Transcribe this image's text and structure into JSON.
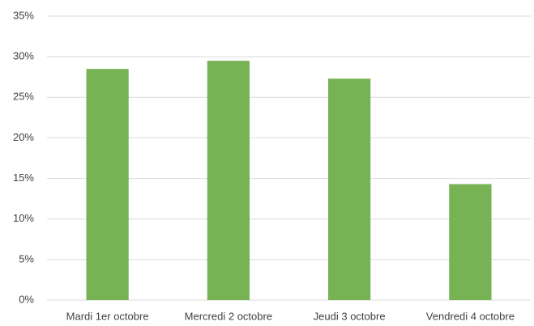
{
  "chart_data": {
    "type": "bar",
    "categories": [
      "Mardi 1er octobre",
      "Mercredi 2 octobre",
      "Jeudi 3 octobre",
      "Vendredi 4 octobre"
    ],
    "values": [
      28.5,
      29.5,
      27.3,
      14.3
    ],
    "color": "#77b254",
    "ylim": [
      0,
      35
    ],
    "yticks": [
      {
        "value": 0,
        "label": "0%"
      },
      {
        "value": 5,
        "label": "5%"
      },
      {
        "value": 10,
        "label": "10%"
      },
      {
        "value": 15,
        "label": "15%"
      },
      {
        "value": 20,
        "label": "20%"
      },
      {
        "value": 25,
        "label": "25%"
      },
      {
        "value": 30,
        "label": "30%"
      },
      {
        "value": 35,
        "label": "35%"
      }
    ],
    "grid": true
  }
}
